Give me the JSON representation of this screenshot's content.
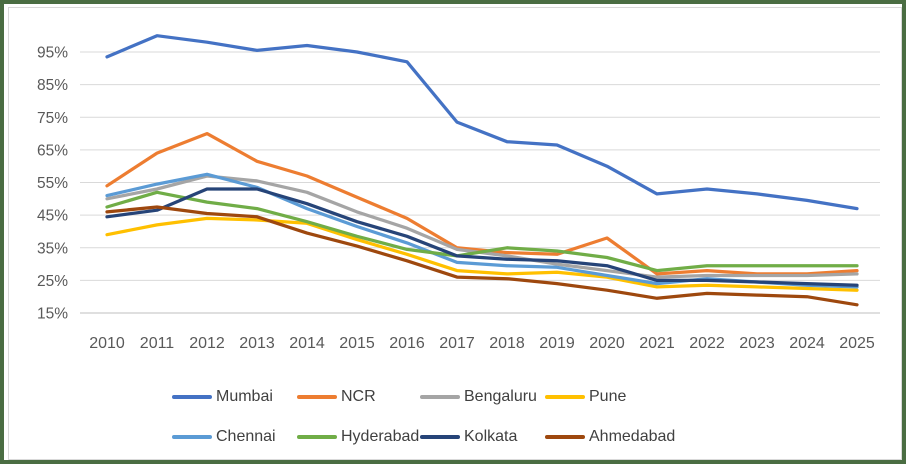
{
  "frame": {
    "outer_border_color": "#4a6d42",
    "inner_border_color": "#d9d9d9",
    "background": "#ffffff"
  },
  "styles": {
    "axis_text_color": "#595959",
    "legend_text_color": "#404040",
    "gridline_color": "#d9d9d9",
    "axis_line_color": "#bfbfbf"
  },
  "chart_data": {
    "type": "line",
    "title": "",
    "x": [
      2010,
      2011,
      2012,
      2013,
      2014,
      2015,
      2016,
      2017,
      2018,
      2019,
      2020,
      2021,
      2022,
      2023,
      2024,
      2025
    ],
    "y_gridlines": [
      95,
      85,
      75,
      65,
      55,
      45,
      35,
      25,
      15
    ],
    "y_tick_suffix": "%",
    "ylim": [
      15,
      105
    ],
    "grid": true,
    "legend_position": "bottom",
    "series": [
      {
        "name": "Mumbai",
        "color": "#4472C4",
        "values": [
          93.5,
          100,
          98,
          95.5,
          97,
          95,
          92,
          73.5,
          67.5,
          66.5,
          60,
          51.5,
          53,
          51.5,
          49.5,
          47
        ]
      },
      {
        "name": "NCR",
        "color": "#ED7D31",
        "values": [
          54,
          64,
          70,
          61.5,
          57,
          50.5,
          44,
          35,
          33.5,
          33,
          38,
          27,
          28,
          27,
          27,
          28
        ]
      },
      {
        "name": "Bengaluru",
        "color": "#A5A5A5",
        "values": [
          50,
          53,
          57,
          55.5,
          52,
          46,
          41,
          34.5,
          32.5,
          30,
          28,
          26,
          26.5,
          26.5,
          26.5,
          27
        ]
      },
      {
        "name": "Pune",
        "color": "#FFC000",
        "values": [
          39,
          42,
          44,
          43.5,
          42.5,
          37.5,
          33,
          28,
          27,
          27.5,
          26,
          23,
          23.5,
          23,
          22.5,
          22
        ]
      },
      {
        "name": "Chennai",
        "color": "#5B9BD5",
        "values": [
          51,
          54.5,
          57.5,
          53.5,
          47,
          41.5,
          36.5,
          30.5,
          29.5,
          29,
          26.5,
          24,
          25.5,
          24.5,
          23.5,
          23
        ]
      },
      {
        "name": "Hyderabad",
        "color": "#70AD47",
        "values": [
          47.5,
          52,
          49,
          47,
          43,
          38.5,
          34.5,
          32.5,
          35,
          34,
          32,
          28,
          29.5,
          29.5,
          29.5,
          29.5
        ]
      },
      {
        "name": "Kolkata",
        "color": "#264478",
        "values": [
          44.5,
          46.5,
          53,
          53,
          48.5,
          43,
          38.5,
          32.5,
          31.5,
          31,
          29.5,
          25,
          25,
          24.5,
          24,
          23.5
        ]
      },
      {
        "name": "Ahmedabad",
        "color": "#9E480E",
        "values": [
          46,
          47.5,
          45.5,
          44.5,
          39.5,
          35.5,
          31,
          26,
          25.5,
          24,
          22,
          19.5,
          21,
          20.5,
          20,
          17.5
        ]
      }
    ]
  },
  "legend": {
    "rows": [
      [
        {
          "label": "Mumbai"
        },
        {
          "label": "NCR"
        },
        {
          "label": "Bengaluru"
        },
        {
          "label": "Pune"
        }
      ],
      [
        {
          "label": "Chennai"
        },
        {
          "label": "Hyderabad"
        },
        {
          "label": "Kolkata"
        },
        {
          "label": "Ahmedabad"
        }
      ]
    ]
  }
}
